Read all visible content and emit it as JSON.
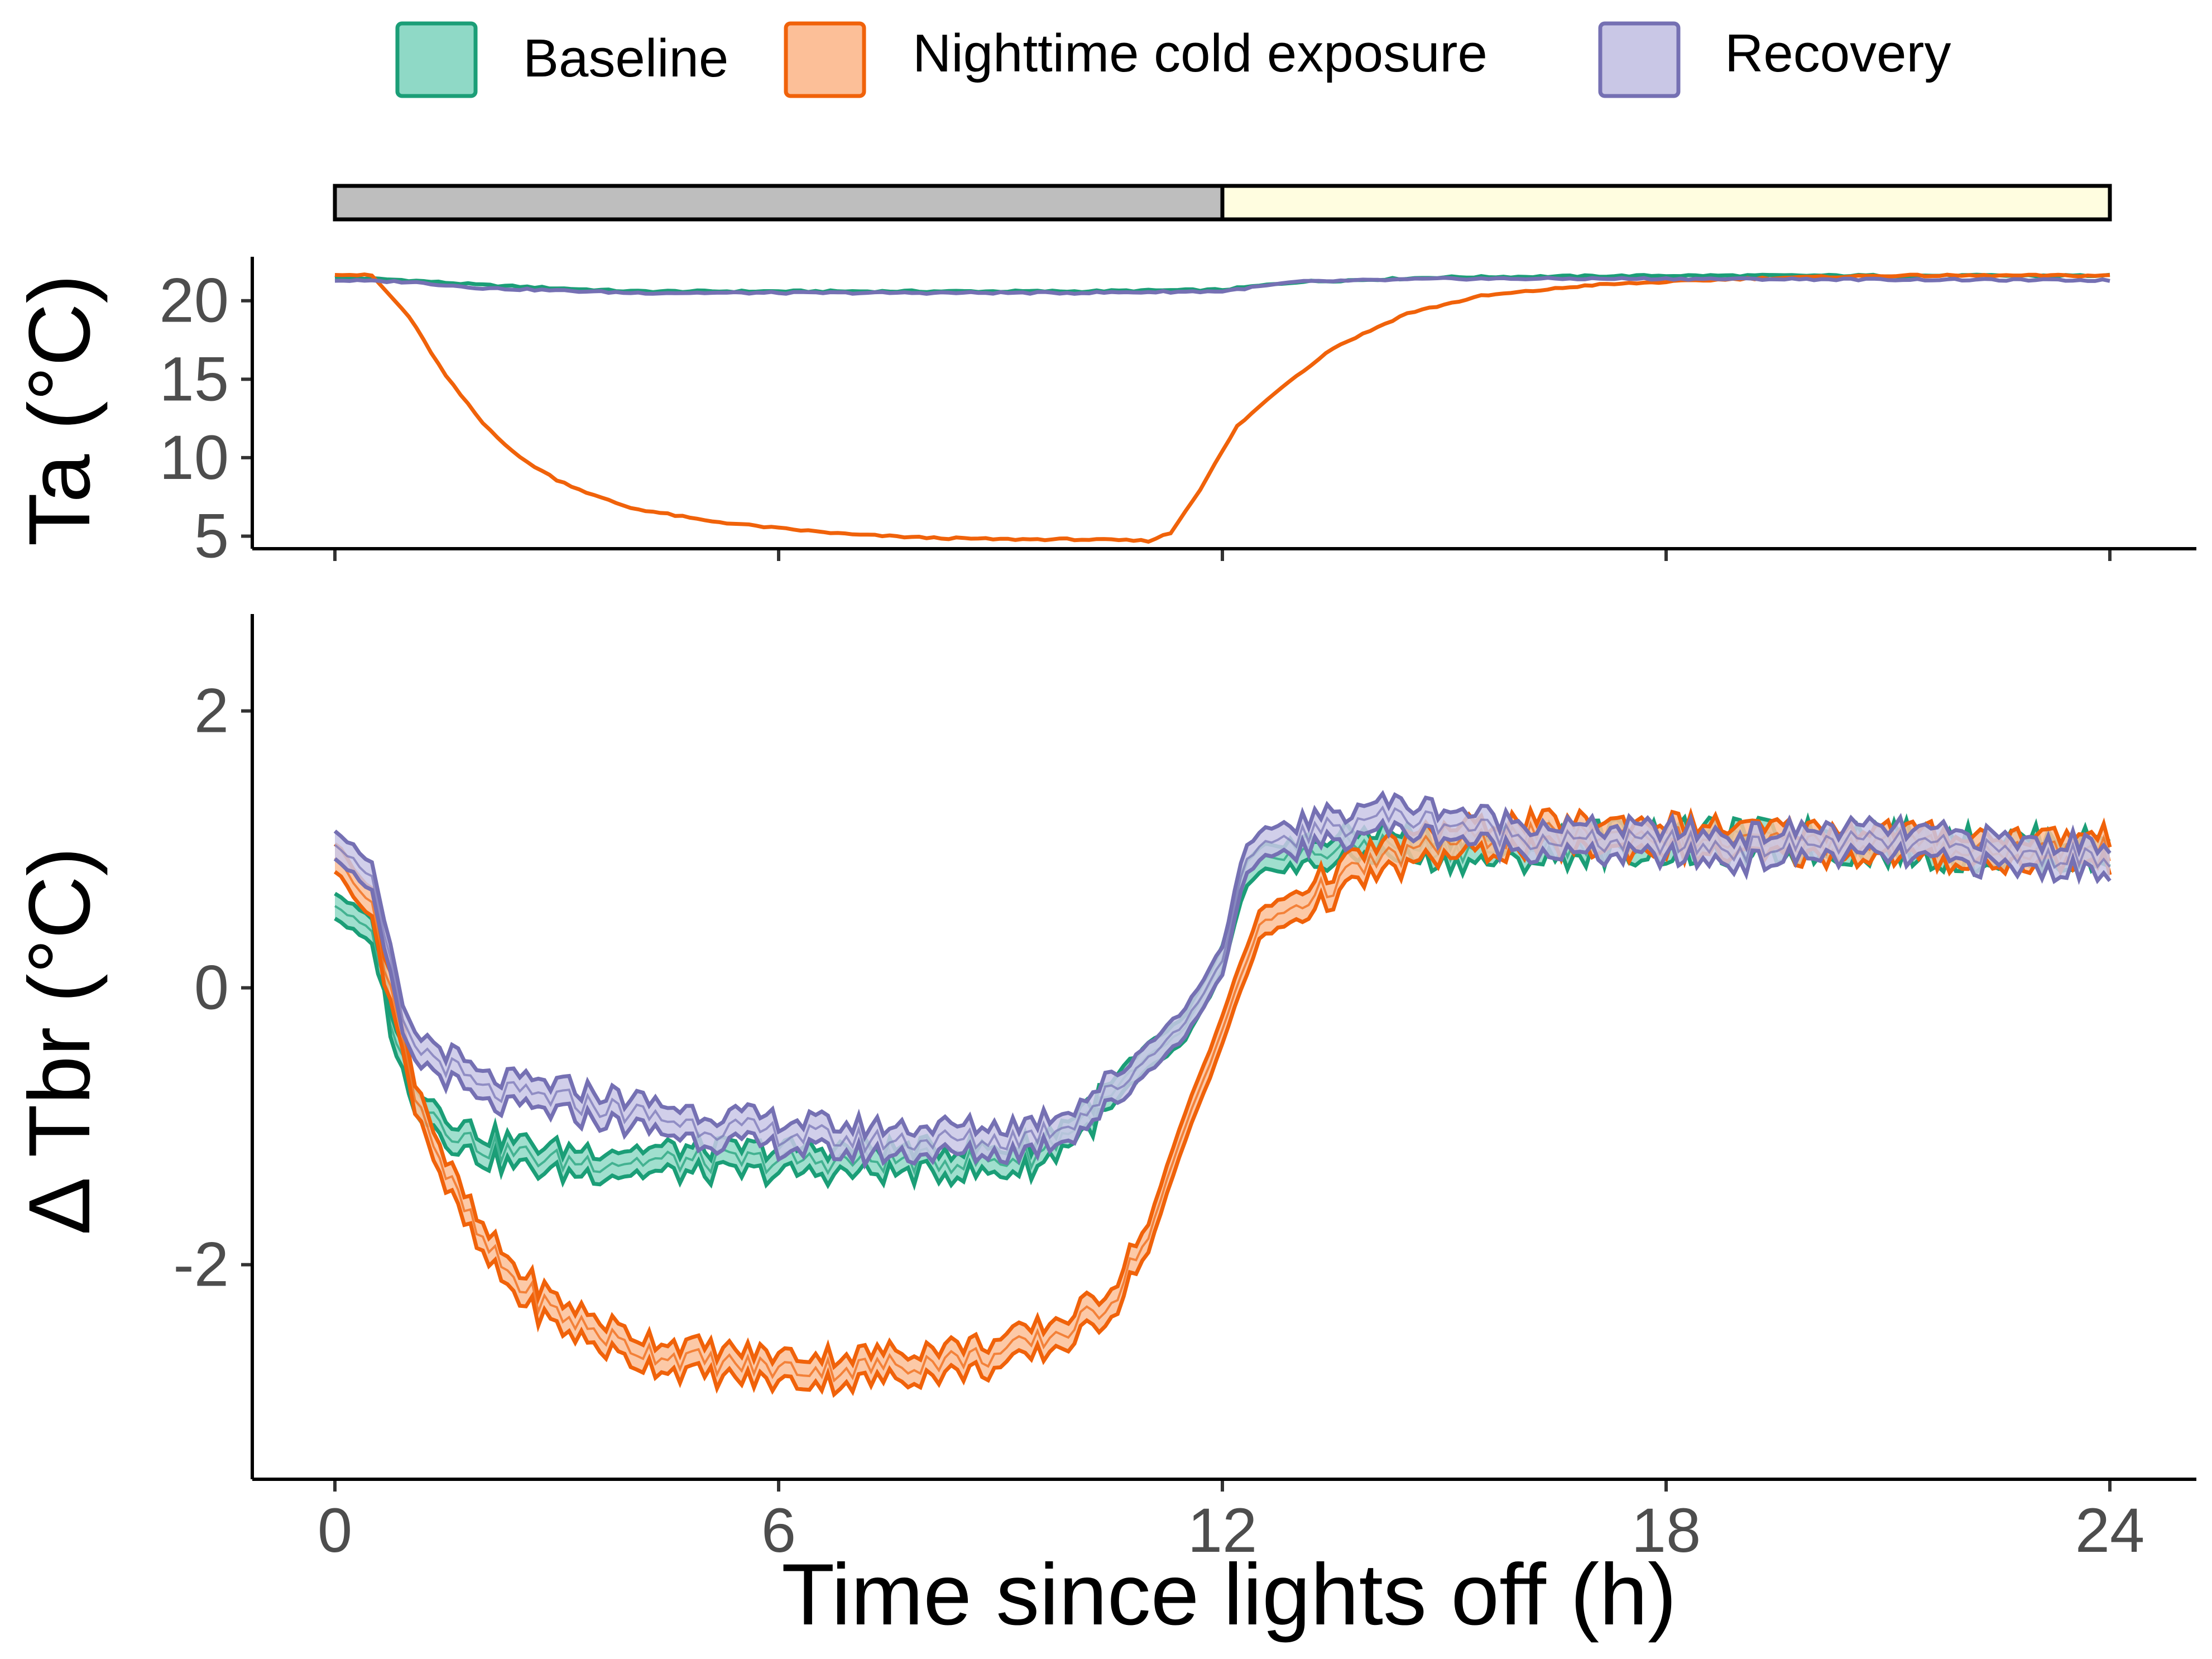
{
  "chart_data": {
    "type": "line",
    "legend": {
      "position": "top",
      "entries": [
        {
          "name": "Baseline",
          "color": "#1b9e77",
          "fill": "#8fd9c6"
        },
        {
          "name": "Nighttime cold exposure",
          "color": "#f0620a",
          "fill": "#fcbf98"
        },
        {
          "name": "Recovery",
          "color": "#7570b3",
          "fill": "#c9c7e6"
        }
      ]
    },
    "light_phase_bar": {
      "segments": [
        {
          "label": "dark",
          "start": 0,
          "end": 12,
          "color": "#bebebe"
        },
        {
          "label": "light",
          "start": 12,
          "end": 24,
          "color": "#fffde0"
        }
      ]
    },
    "x": {
      "label": "Time since lights off (h)",
      "lim": [
        -1.1,
        25.2
      ],
      "ticks": [
        0,
        6,
        12,
        18,
        24
      ],
      "tick_labels": [
        "0",
        "6",
        "12",
        "18",
        "24"
      ]
    },
    "panels": [
      {
        "id": "ta",
        "ylabel": "Ta (°C)",
        "ylim": [
          4.2,
          22.8
        ],
        "yticks": [
          5,
          10,
          15,
          20
        ],
        "ytick_labels": [
          "5",
          "10",
          "15",
          "20"
        ],
        "series": [
          {
            "name": "Baseline",
            "points": [
              [
                0,
                21.5
              ],
              [
                1,
                21.3
              ],
              [
                2,
                21.0
              ],
              [
                4,
                20.6
              ],
              [
                8,
                20.6
              ],
              [
                10,
                20.6
              ],
              [
                12,
                20.7
              ],
              [
                13,
                21.2
              ],
              [
                15,
                21.5
              ],
              [
                18,
                21.6
              ],
              [
                24,
                21.6
              ]
            ]
          },
          {
            "name": "Nighttime cold exposure",
            "points": [
              [
                0,
                21.7
              ],
              [
                0.5,
                21.6
              ],
              [
                1,
                19.0
              ],
              [
                1.5,
                15.2
              ],
              [
                2,
                12.2
              ],
              [
                2.5,
                10.0
              ],
              [
                3,
                8.6
              ],
              [
                3.5,
                7.6
              ],
              [
                4,
                6.8
              ],
              [
                5,
                6.0
              ],
              [
                6,
                5.5
              ],
              [
                7,
                5.1
              ],
              [
                8,
                4.9
              ],
              [
                9,
                4.8
              ],
              [
                10,
                4.8
              ],
              [
                11,
                4.7
              ],
              [
                11.3,
                5.2
              ],
              [
                11.7,
                8.0
              ],
              [
                12.2,
                12.0
              ],
              [
                12.8,
                14.5
              ],
              [
                13.5,
                17.0
              ],
              [
                14.5,
                19.2
              ],
              [
                15.5,
                20.3
              ],
              [
                17,
                21.0
              ],
              [
                19,
                21.4
              ],
              [
                21,
                21.6
              ],
              [
                24,
                21.6
              ]
            ]
          },
          {
            "name": "Recovery",
            "points": [
              [
                0,
                21.3
              ],
              [
                1,
                21.2
              ],
              [
                2,
                20.8
              ],
              [
                4,
                20.5
              ],
              [
                8,
                20.5
              ],
              [
                10,
                20.5
              ],
              [
                12,
                20.6
              ],
              [
                13,
                21.2
              ],
              [
                15,
                21.4
              ],
              [
                18,
                21.4
              ],
              [
                24,
                21.3
              ]
            ]
          }
        ]
      },
      {
        "id": "tbr",
        "ylabel": "Δ Tbr (°C)",
        "ylim": [
          -3.55,
          2.7
        ],
        "yticks": [
          -2,
          0,
          2
        ],
        "ytick_labels": [
          "-2",
          "0",
          "2"
        ],
        "series": [
          {
            "name": "Baseline",
            "band": 0.09,
            "points": [
              [
                0,
                0.6
              ],
              [
                0.5,
                0.4
              ],
              [
                0.8,
                -0.3
              ],
              [
                1,
                -0.7
              ],
              [
                1.5,
                -1.0
              ],
              [
                2,
                -1.15
              ],
              [
                3,
                -1.25
              ],
              [
                4,
                -1.25
              ],
              [
                5,
                -1.25
              ],
              [
                6,
                -1.25
              ],
              [
                7,
                -1.25
              ],
              [
                8,
                -1.25
              ],
              [
                9,
                -1.25
              ],
              [
                9.5,
                -1.2
              ],
              [
                10,
                -1.0
              ],
              [
                10.5,
                -0.8
              ],
              [
                11,
                -0.5
              ],
              [
                11.5,
                -0.3
              ],
              [
                12,
                0.2
              ],
              [
                12.3,
                0.8
              ],
              [
                12.6,
                0.95
              ],
              [
                13,
                0.95
              ],
              [
                14,
                1.05
              ],
              [
                15,
                1.0
              ],
              [
                16,
                1.0
              ],
              [
                17,
                1.05
              ],
              [
                18,
                1.05
              ],
              [
                19,
                1.05
              ],
              [
                20,
                1.05
              ],
              [
                21,
                1.05
              ],
              [
                22,
                1.0
              ],
              [
                23,
                1.0
              ],
              [
                24,
                0.98
              ]
            ]
          },
          {
            "name": "Nighttime cold exposure",
            "band": 0.1,
            "points": [
              [
                0,
                0.95
              ],
              [
                0.5,
                0.6
              ],
              [
                0.8,
                -0.1
              ],
              [
                1,
                -0.6
              ],
              [
                1.5,
                -1.35
              ],
              [
                2,
                -1.85
              ],
              [
                2.5,
                -2.15
              ],
              [
                3,
                -2.35
              ],
              [
                4,
                -2.6
              ],
              [
                5,
                -2.7
              ],
              [
                6,
                -2.75
              ],
              [
                7,
                -2.75
              ],
              [
                8,
                -2.7
              ],
              [
                9,
                -2.65
              ],
              [
                9.5,
                -2.55
              ],
              [
                10,
                -2.45
              ],
              [
                10.5,
                -2.25
              ],
              [
                11,
                -1.8
              ],
              [
                11.5,
                -1.0
              ],
              [
                12,
                -0.3
              ],
              [
                12.5,
                0.45
              ],
              [
                13,
                0.6
              ],
              [
                13.5,
                0.75
              ],
              [
                14,
                0.9
              ],
              [
                15,
                1.05
              ],
              [
                16,
                1.1
              ],
              [
                17,
                1.1
              ],
              [
                18,
                1.1
              ],
              [
                19,
                1.05
              ],
              [
                20,
                1.05
              ],
              [
                21,
                1.05
              ],
              [
                22,
                1.0
              ],
              [
                23,
                1.0
              ],
              [
                24,
                1.0
              ]
            ]
          },
          {
            "name": "Recovery",
            "band": 0.1,
            "points": [
              [
                0,
                1.05
              ],
              [
                0.5,
                0.8
              ],
              [
                0.8,
                0.0
              ],
              [
                1,
                -0.4
              ],
              [
                1.5,
                -0.55
              ],
              [
                2,
                -0.75
              ],
              [
                3,
                -0.8
              ],
              [
                4,
                -0.9
              ],
              [
                5,
                -1.0
              ],
              [
                6,
                -1.05
              ],
              [
                7,
                -1.1
              ],
              [
                8,
                -1.1
              ],
              [
                9,
                -1.1
              ],
              [
                9.5,
                -1.05
              ],
              [
                10,
                -0.95
              ],
              [
                10.5,
                -0.75
              ],
              [
                11,
                -0.5
              ],
              [
                11.5,
                -0.25
              ],
              [
                12,
                0.2
              ],
              [
                12.3,
                0.9
              ],
              [
                12.6,
                1.05
              ],
              [
                13,
                1.1
              ],
              [
                13.5,
                1.15
              ],
              [
                14,
                1.25
              ],
              [
                15,
                1.2
              ],
              [
                16,
                1.1
              ],
              [
                17,
                1.05
              ],
              [
                18,
                1.05
              ],
              [
                19,
                1.0
              ],
              [
                20,
                1.05
              ],
              [
                21,
                1.05
              ],
              [
                22,
                1.0
              ],
              [
                23,
                0.95
              ],
              [
                24,
                0.95
              ]
            ]
          }
        ]
      }
    ]
  }
}
